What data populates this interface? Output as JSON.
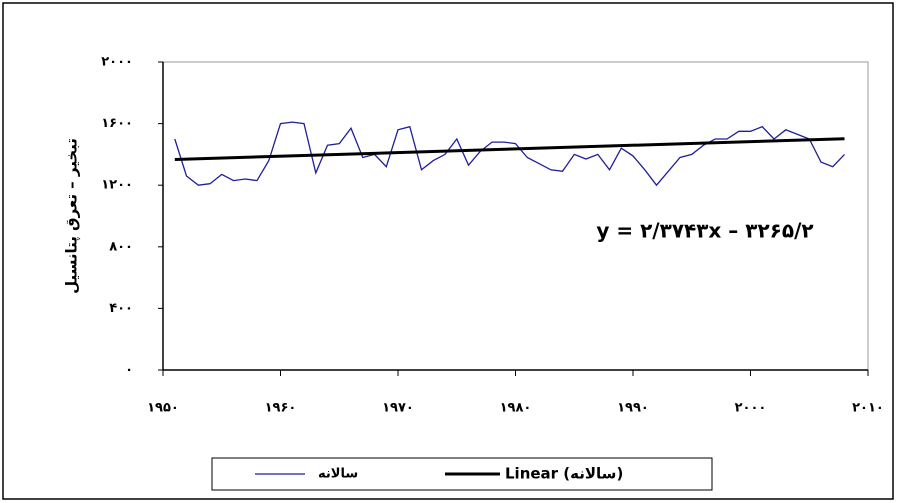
{
  "chart_data": {
    "type": "line",
    "y_label": "تبخیر – تعرق پتانسیل",
    "annotation": "y = ۲/۳۷۴۳x – ۳۲۶۵/۲",
    "x": [
      1951,
      1952,
      1953,
      1954,
      1955,
      1956,
      1957,
      1958,
      1959,
      1960,
      1961,
      1962,
      1963,
      1964,
      1965,
      1966,
      1967,
      1968,
      1969,
      1970,
      1971,
      1972,
      1973,
      1974,
      1975,
      1976,
      1977,
      1978,
      1979,
      1980,
      1981,
      1982,
      1983,
      1984,
      1985,
      1986,
      1987,
      1988,
      1989,
      1990,
      1991,
      1992,
      1993,
      1994,
      1995,
      1996,
      1997,
      1998,
      1999,
      2000,
      2001,
      2002,
      2003,
      2004,
      2005,
      2006,
      2007,
      2008
    ],
    "series": [
      {
        "name": "سالانه",
        "color": "#1f1f9c",
        "values": [
          1500,
          1260,
          1200,
          1210,
          1270,
          1230,
          1240,
          1230,
          1360,
          1600,
          1610,
          1600,
          1280,
          1460,
          1470,
          1570,
          1380,
          1400,
          1320,
          1560,
          1580,
          1300,
          1360,
          1400,
          1500,
          1330,
          1420,
          1480,
          1480,
          1470,
          1380,
          1340,
          1300,
          1290,
          1400,
          1370,
          1400,
          1300,
          1440,
          1390,
          1300,
          1200,
          1290,
          1380,
          1400,
          1460,
          1500,
          1500,
          1550,
          1550,
          1580,
          1500,
          1560,
          1530,
          1500,
          1350,
          1320,
          1400
        ]
      }
    ],
    "trend": {
      "name": "Linear (سالانه)",
      "color": "#000000",
      "x": [
        1951,
        2008
      ],
      "values": [
        1367,
        1502
      ]
    },
    "xlim": [
      1950,
      2010
    ],
    "xticks": [
      {
        "value": 1950,
        "label": "۱۹۵۰"
      },
      {
        "value": 1960,
        "label": "۱۹۶۰"
      },
      {
        "value": 1970,
        "label": "۱۹۷۰"
      },
      {
        "value": 1980,
        "label": "۱۹۸۰"
      },
      {
        "value": 1990,
        "label": "۱۹۹۰"
      },
      {
        "value": 2000,
        "label": "۲۰۰۰"
      },
      {
        "value": 2010,
        "label": "۲۰۱۰"
      }
    ],
    "ylim": [
      0,
      2000
    ],
    "yticks": [
      {
        "value": 0,
        "label": "۰"
      },
      {
        "value": 400,
        "label": "۴۰۰"
      },
      {
        "value": 800,
        "label": "۸۰۰"
      },
      {
        "value": 1200,
        "label": "۱۲۰۰"
      },
      {
        "value": 1600,
        "label": "۱۶۰۰"
      },
      {
        "value": 2000,
        "label": "۲۰۰۰"
      }
    ],
    "legend": "bottom"
  }
}
